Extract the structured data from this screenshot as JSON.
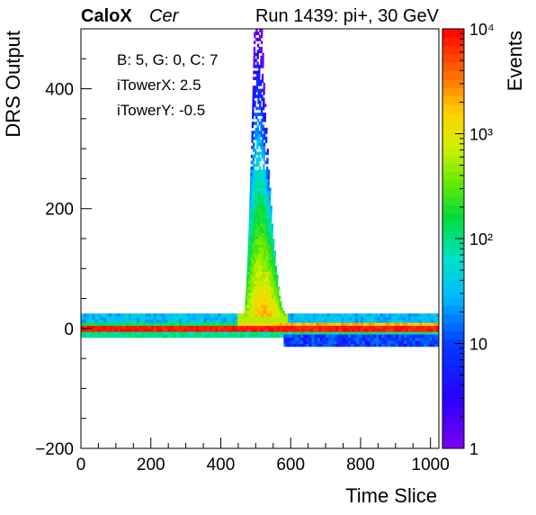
{
  "header": {
    "experiment": "CaloX",
    "channel": "Cer",
    "run_info": "Run 1439: pi+, 30 GeV"
  },
  "annotations": [
    "B: 5, G: 0, C: 7",
    "iTowerX: 2.5",
    "iTowerY: -0.5"
  ],
  "chart_data": {
    "type": "heatmap",
    "xlabel": "Time Slice",
    "ylabel": "DRS Output",
    "xlim": [
      0,
      1024
    ],
    "ylim": [
      -200,
      500
    ],
    "x_ticks": [
      0,
      200,
      400,
      600,
      800,
      1000
    ],
    "y_ticks": [
      -200,
      0,
      200,
      400
    ],
    "colorbar": {
      "label": "Events",
      "scale": "log",
      "range": [
        1,
        10000
      ],
      "tick_labels": [
        "1",
        "10",
        "10²",
        "10³",
        "10⁴"
      ],
      "tick_values": [
        1,
        10,
        100,
        1000,
        10000
      ]
    },
    "regions": [
      {
        "kind": "pedestal_band",
        "x": [
          0,
          1024
        ],
        "y": [
          -15,
          22
        ],
        "peak_count": 10000
      },
      {
        "kind": "signal_pulse",
        "x_range": [
          445,
          590
        ],
        "peak_x": 500,
        "y_max": 500,
        "peak_count": 2000
      },
      {
        "kind": "undershoot",
        "x": [
          580,
          1024
        ],
        "y": [
          -30,
          -10
        ],
        "count": 10
      }
    ]
  }
}
